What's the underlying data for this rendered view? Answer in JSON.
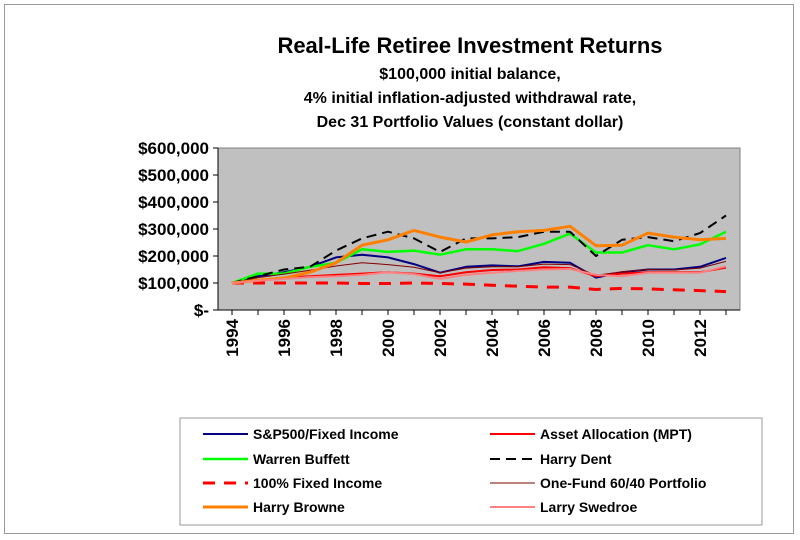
{
  "chart_data": {
    "type": "line",
    "title": "Real-Life Retiree Investment Returns",
    "subtitle": [
      "$100,000 initial balance,",
      "4% initial inflation-adjusted withdrawal rate,",
      "Dec 31 Portfolio Values (constant dollar)"
    ],
    "xlabel": "",
    "ylabel": "",
    "x": [
      1994,
      1995,
      1996,
      1997,
      1998,
      1999,
      2000,
      2001,
      2002,
      2003,
      2004,
      2005,
      2006,
      2007,
      2008,
      2009,
      2010,
      2011,
      2012,
      2013
    ],
    "x_ticks": [
      "1994",
      "1996",
      "1998",
      "2000",
      "2002",
      "2004",
      "2006",
      "2008",
      "2010",
      "2012"
    ],
    "ylim": [
      0,
      600000
    ],
    "y_ticks": [
      0,
      100000,
      200000,
      300000,
      400000,
      500000,
      600000
    ],
    "y_tick_labels": [
      "$-",
      "$100,000",
      "$200,000",
      "$300,000",
      "$400,000",
      "$500,000",
      "$600,000"
    ],
    "grid": false,
    "plot_background": "#c0c0c0",
    "legend_position": "bottom",
    "series": [
      {
        "name": "S&P500/Fixed Income",
        "color": "#000080",
        "dash": "solid",
        "width": 2,
        "values": [
          100000,
          125000,
          140000,
          160000,
          195000,
          205000,
          195000,
          170000,
          138000,
          160000,
          165000,
          162000,
          178000,
          175000,
          120000,
          140000,
          150000,
          150000,
          160000,
          193000
        ]
      },
      {
        "name": "Asset Allocation (MPT)",
        "color": "#ff0000",
        "dash": "solid",
        "width": 2,
        "values": [
          100000,
          110000,
          120000,
          125000,
          130000,
          135000,
          140000,
          135000,
          125000,
          140000,
          148000,
          150000,
          158000,
          155000,
          125000,
          135000,
          140000,
          140000,
          140000,
          157000
        ]
      },
      {
        "name": "Warren Buffett",
        "color": "#00ff00",
        "dash": "solid",
        "width": 2.5,
        "values": [
          100000,
          135000,
          135000,
          160000,
          175000,
          225000,
          215000,
          220000,
          205000,
          225000,
          225000,
          218000,
          245000,
          283000,
          213000,
          213000,
          240000,
          225000,
          243000,
          290000
        ]
      },
      {
        "name": "Harry Dent",
        "color": "#000000",
        "dash": "10,6",
        "width": 2,
        "values": [
          100000,
          125000,
          150000,
          160000,
          220000,
          265000,
          290000,
          265000,
          215000,
          265000,
          265000,
          270000,
          290000,
          290000,
          200000,
          260000,
          270000,
          255000,
          285000,
          350000
        ]
      },
      {
        "name": "100% Fixed Income",
        "color": "#ff0000",
        "dash": "12,9",
        "width": 3,
        "values": [
          100000,
          100000,
          100000,
          100000,
          100000,
          98000,
          98000,
          100000,
          98000,
          96000,
          92000,
          88000,
          85000,
          85000,
          76000,
          80000,
          78000,
          75000,
          72000,
          68000
        ]
      },
      {
        "name": "One-Fund 60/40 Portfolio",
        "color": "#800000",
        "dash": "solid",
        "width": 1,
        "values": [
          100000,
          120000,
          133000,
          147000,
          163000,
          175000,
          168000,
          158000,
          138000,
          155000,
          160000,
          160000,
          170000,
          168000,
          128000,
          142000,
          150000,
          148000,
          155000,
          180000
        ]
      },
      {
        "name": "Harry Browne",
        "color": "#ff8000",
        "dash": "solid",
        "width": 3,
        "values": [
          100000,
          110000,
          118000,
          140000,
          175000,
          240000,
          260000,
          295000,
          270000,
          252000,
          278000,
          290000,
          295000,
          310000,
          238000,
          240000,
          285000,
          270000,
          260000,
          265000
        ]
      },
      {
        "name": "Larry Swedroe",
        "color": "#ff8080",
        "dash": "solid",
        "width": 2,
        "values": [
          100000,
          108000,
          115000,
          122000,
          125000,
          130000,
          140000,
          133000,
          115000,
          130000,
          138000,
          145000,
          150000,
          152000,
          130000,
          125000,
          138000,
          138000,
          138000,
          162000
        ]
      }
    ]
  }
}
